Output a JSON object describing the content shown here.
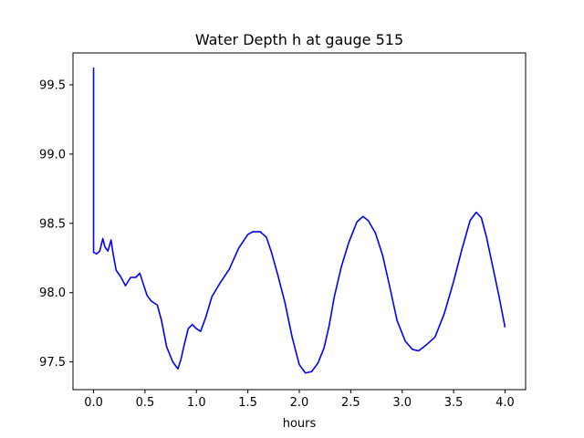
{
  "chart_data": {
    "type": "line",
    "title": "Water Depth h at gauge 515",
    "xlabel": "hours",
    "ylabel": "",
    "xlim": [
      -0.2,
      4.2
    ],
    "ylim": [
      97.3,
      99.73
    ],
    "xticks": [
      0.0,
      0.5,
      1.0,
      1.5,
      2.0,
      2.5,
      3.0,
      3.5,
      4.0
    ],
    "xtick_labels": [
      "0.0",
      "0.5",
      "1.0",
      "1.5",
      "2.0",
      "2.5",
      "3.0",
      "3.5",
      "4.0"
    ],
    "yticks": [
      97.5,
      98.0,
      98.5,
      99.0,
      99.5
    ],
    "ytick_labels": [
      "97.5",
      "98.0",
      "98.5",
      "99.0",
      "99.5"
    ],
    "grid": false,
    "line_color": "#0000ff",
    "series": [
      {
        "x": [
          0.0,
          0.0,
          0.0,
          0.03,
          0.06,
          0.09,
          0.11,
          0.14,
          0.17,
          0.19,
          0.22,
          0.26,
          0.31,
          0.36,
          0.41,
          0.45,
          0.48,
          0.52,
          0.56,
          0.62,
          0.66,
          0.71,
          0.77,
          0.82,
          0.85,
          0.88,
          0.92,
          0.96,
          1.0,
          1.04,
          1.09,
          1.15,
          1.23,
          1.32,
          1.41,
          1.5,
          1.55,
          1.62,
          1.68,
          1.73,
          1.79,
          1.86,
          1.93,
          2.0,
          2.06,
          2.12,
          2.18,
          2.24,
          2.29,
          2.34,
          2.41,
          2.48,
          2.56,
          2.62,
          2.67,
          2.74,
          2.81,
          2.88,
          2.95,
          3.03,
          3.1,
          3.16,
          3.23,
          3.32,
          3.41,
          3.5,
          3.58,
          3.66,
          3.72,
          3.77,
          3.82,
          3.88,
          3.94,
          4.0
        ],
        "y": [
          98.29,
          99.62,
          98.29,
          98.28,
          98.3,
          98.39,
          98.33,
          98.3,
          98.38,
          98.28,
          98.16,
          98.12,
          98.05,
          98.11,
          98.11,
          98.14,
          98.07,
          97.98,
          97.94,
          97.91,
          97.8,
          97.61,
          97.5,
          97.45,
          97.52,
          97.62,
          97.74,
          97.77,
          97.74,
          97.72,
          97.82,
          97.97,
          98.07,
          98.17,
          98.32,
          98.42,
          98.44,
          98.44,
          98.4,
          98.29,
          98.13,
          97.93,
          97.68,
          97.48,
          97.42,
          97.43,
          97.49,
          97.6,
          97.76,
          97.97,
          98.19,
          98.36,
          98.51,
          98.55,
          98.52,
          98.43,
          98.27,
          98.04,
          97.8,
          97.65,
          97.59,
          97.58,
          97.62,
          97.68,
          97.85,
          98.08,
          98.31,
          98.52,
          98.58,
          98.54,
          98.4,
          98.19,
          97.98,
          97.75
        ]
      }
    ]
  }
}
